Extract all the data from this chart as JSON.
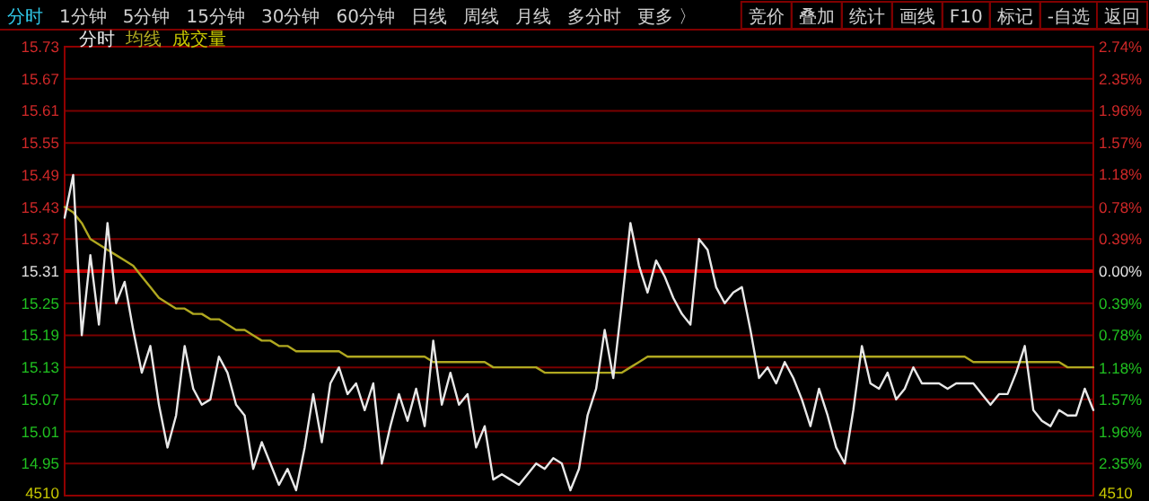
{
  "chart_data": {
    "type": "line",
    "grid": "y",
    "tick_labels": "y",
    "categories": [
      null,
      null,
      null,
      null,
      null,
      null,
      null,
      null,
      null,
      null,
      null,
      null,
      null,
      null,
      null,
      null,
      null,
      null,
      null,
      null,
      null,
      null,
      null,
      null,
      null,
      null,
      null,
      null,
      null,
      null,
      null,
      null,
      null,
      null,
      null,
      null,
      null,
      null,
      null,
      null,
      null,
      null,
      null,
      null,
      null,
      null,
      null,
      null,
      null,
      null,
      null,
      null,
      null,
      null,
      null,
      null,
      null,
      null,
      null,
      null,
      null,
      null,
      null,
      null,
      null,
      null,
      null,
      null,
      null,
      null,
      null,
      null,
      null,
      null,
      null,
      null,
      null,
      null,
      null,
      null,
      null,
      null,
      null,
      null,
      null,
      null,
      null,
      null,
      null,
      null,
      null,
      null,
      null,
      null,
      null,
      null,
      null,
      null,
      null,
      null,
      null,
      null,
      null,
      null,
      null,
      null,
      null,
      null,
      null,
      null,
      null,
      null,
      null,
      null,
      null,
      null,
      null,
      null,
      null,
      null,
      null
    ],
    "ylim": [
      14.89,
      15.73
    ],
    "yticks": [
      14.95,
      15.01,
      15.07,
      15.13,
      15.19,
      15.25,
      15.31,
      15.37,
      15.43,
      15.49,
      15.55,
      15.61,
      15.67,
      15.73
    ],
    "y2lim": [
      -2.74,
      2.74
    ],
    "y2ticks": [
      {
        "value": -2.35,
        "label": "2.35%"
      },
      {
        "value": -1.96,
        "label": "1.96%"
      },
      {
        "value": -1.57,
        "label": "1.57%"
      },
      {
        "value": -1.18,
        "label": "1.18%"
      },
      {
        "value": -0.78,
        "label": "0.78%"
      },
      {
        "value": -0.39,
        "label": "0.39%"
      },
      {
        "value": 0,
        "label": "0.00%"
      },
      {
        "value": 0.39,
        "label": "0.39%"
      },
      {
        "value": 0.78,
        "label": "0.78%"
      },
      {
        "value": 1.18,
        "label": "1.18%"
      },
      {
        "value": 1.57,
        "label": "1.57%"
      },
      {
        "value": 1.96,
        "label": "1.96%"
      },
      {
        "value": 2.35,
        "label": "2.35%"
      },
      {
        "value": 2.74,
        "label": "2.74%"
      }
    ],
    "ref_lines": [
      {
        "axis": "y",
        "value": 15.31,
        "color": "#c00000"
      }
    ],
    "annotations": [
      "分时",
      "1分钟",
      "5分钟",
      "15分钟",
      "30分钟",
      "60分钟",
      "日线",
      "周线",
      "月线",
      "多分时",
      "更多 〉",
      "竞价",
      "叠加",
      "统计",
      "画线",
      "F10",
      "标记",
      "-自选",
      "返回",
      "成交量",
      "4510",
      "4510"
    ],
    "series": [
      {
        "name": "分时",
        "color": "#e8e8e8",
        "values": [
          15.41,
          15.49,
          15.19,
          15.34,
          15.21,
          15.4,
          15.25,
          15.29,
          15.2,
          15.12,
          15.17,
          15.06,
          14.98,
          15.04,
          15.17,
          15.09,
          15.06,
          15.07,
          15.15,
          15.12,
          15.06,
          15.04,
          14.94,
          14.99,
          14.95,
          14.91,
          14.94,
          14.9,
          14.98,
          15.08,
          14.99,
          15.1,
          15.13,
          15.08,
          15.1,
          15.05,
          15.1,
          14.95,
          15.02,
          15.08,
          15.03,
          15.09,
          15.02,
          15.18,
          15.06,
          15.12,
          15.06,
          15.08,
          14.98,
          15.02,
          14.92,
          14.93,
          14.92,
          14.91,
          14.93,
          14.95,
          14.94,
          14.96,
          14.95,
          14.9,
          14.94,
          15.04,
          15.09,
          15.2,
          15.11,
          15.25,
          15.4,
          15.32,
          15.27,
          15.33,
          15.3,
          15.26,
          15.23,
          15.21,
          15.37,
          15.35,
          15.28,
          15.25,
          15.27,
          15.28,
          15.2,
          15.11,
          15.13,
          15.1,
          15.14,
          15.11,
          15.07,
          15.02,
          15.09,
          15.04,
          14.98,
          14.95,
          15.05,
          15.17,
          15.1,
          15.09,
          15.12,
          15.07,
          15.09,
          15.13,
          15.1,
          15.1,
          15.1,
          15.09,
          15.1,
          15.1,
          15.1,
          15.08,
          15.06,
          15.08,
          15.08,
          15.12,
          15.17,
          15.05,
          15.03,
          15.02,
          15.05,
          15.04,
          15.04,
          15.09,
          15.05
        ]
      },
      {
        "name": "均线",
        "color": "#b0a820",
        "values": [
          15.43,
          15.42,
          15.4,
          15.37,
          15.36,
          15.35,
          15.34,
          15.33,
          15.32,
          15.3,
          15.28,
          15.26,
          15.25,
          15.24,
          15.24,
          15.23,
          15.23,
          15.22,
          15.22,
          15.21,
          15.2,
          15.2,
          15.19,
          15.18,
          15.18,
          15.17,
          15.17,
          15.16,
          15.16,
          15.16,
          15.16,
          15.16,
          15.16,
          15.15,
          15.15,
          15.15,
          15.15,
          15.15,
          15.15,
          15.15,
          15.15,
          15.15,
          15.15,
          15.14,
          15.14,
          15.14,
          15.14,
          15.14,
          15.14,
          15.14,
          15.13,
          15.13,
          15.13,
          15.13,
          15.13,
          15.13,
          15.12,
          15.12,
          15.12,
          15.12,
          15.12,
          15.12,
          15.12,
          15.12,
          15.12,
          15.12,
          15.13,
          15.14,
          15.15,
          15.15,
          15.15,
          15.15,
          15.15,
          15.15,
          15.15,
          15.15,
          15.15,
          15.15,
          15.15,
          15.15,
          15.15,
          15.15,
          15.15,
          15.15,
          15.15,
          15.15,
          15.15,
          15.15,
          15.15,
          15.15,
          15.15,
          15.15,
          15.15,
          15.15,
          15.15,
          15.15,
          15.15,
          15.15,
          15.15,
          15.15,
          15.15,
          15.15,
          15.15,
          15.15,
          15.15,
          15.15,
          15.14,
          15.14,
          15.14,
          15.14,
          15.14,
          15.14,
          15.14,
          15.14,
          15.14,
          15.14,
          15.14,
          15.13,
          15.13,
          15.13,
          15.13
        ]
      }
    ]
  }
}
